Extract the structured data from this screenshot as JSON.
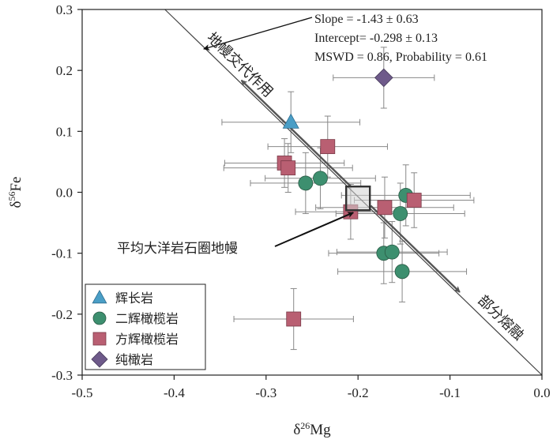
{
  "chart_data": {
    "type": "scatter",
    "xlabel_base": "δ",
    "xlabel_sup": "26",
    "xlabel_rest": "Mg",
    "ylabel_base": "δ",
    "ylabel_sup": "56",
    "ylabel_rest": "Fe",
    "xlim": [
      -0.5,
      0.0
    ],
    "ylim": [
      -0.3,
      0.3
    ],
    "xticks": [
      {
        "v": -0.5,
        "label": "-0.5"
      },
      {
        "v": -0.4,
        "label": "-0.4"
      },
      {
        "v": -0.3,
        "label": "-0.3"
      },
      {
        "v": -0.2,
        "label": "-0.2"
      },
      {
        "v": -0.1,
        "label": "-0.1"
      },
      {
        "v": 0.0,
        "label": "0.0"
      }
    ],
    "yticks": [
      {
        "v": 0.3,
        "label": "0.3"
      },
      {
        "v": 0.2,
        "label": "0.2"
      },
      {
        "v": 0.1,
        "label": "0.1"
      },
      {
        "v": 0.0,
        "label": "0.0"
      },
      {
        "v": -0.1,
        "label": "-0.1"
      },
      {
        "v": -0.2,
        "label": "-0.2"
      },
      {
        "v": -0.3,
        "label": "-0.3"
      }
    ],
    "grid": false,
    "legend_position": "bottom-left",
    "regression": {
      "line1": "Slope = -1.43 ± 0.63",
      "line2": "Intercept= -0.298 ± 0.13",
      "line3": "MSWD = 0.86, Probability = 0.61",
      "start": [
        -0.41,
        0.3
      ],
      "end": [
        0.0,
        -0.3
      ]
    },
    "annotations": {
      "metasomatism": "地幔交代作用",
      "melting": "部分熔融",
      "average": "平均大洋岩石圈地幔"
    },
    "reference_point": {
      "x": -0.2,
      "y": -0.01
    },
    "series": [
      {
        "name": "辉长岩",
        "marker": "triangle",
        "color": "#4a9ec6",
        "points": [
          {
            "x": -0.273,
            "y": 0.115,
            "xerr": 0.075,
            "yerr": 0.05
          }
        ]
      },
      {
        "name": "二辉橄榄岩",
        "marker": "circle",
        "color": "#3d8f6f",
        "points": [
          {
            "x": -0.257,
            "y": 0.015,
            "xerr": 0.06,
            "yerr": 0.05
          },
          {
            "x": -0.241,
            "y": 0.023,
            "xerr": 0.06,
            "yerr": 0.05
          },
          {
            "x": -0.148,
            "y": -0.005,
            "xerr": 0.07,
            "yerr": 0.05
          },
          {
            "x": -0.154,
            "y": -0.035,
            "xerr": 0.07,
            "yerr": 0.05
          },
          {
            "x": -0.172,
            "y": -0.1,
            "xerr": 0.06,
            "yerr": 0.05
          },
          {
            "x": -0.163,
            "y": -0.098,
            "xerr": 0.06,
            "yerr": 0.05
          },
          {
            "x": -0.152,
            "y": -0.13,
            "xerr": 0.07,
            "yerr": 0.05
          }
        ]
      },
      {
        "name": "方辉橄榄岩",
        "marker": "square",
        "color": "#b95f72",
        "points": [
          {
            "x": -0.28,
            "y": 0.048,
            "xerr": 0.065,
            "yerr": 0.04
          },
          {
            "x": -0.276,
            "y": 0.04,
            "xerr": 0.07,
            "yerr": 0.04
          },
          {
            "x": -0.233,
            "y": 0.075,
            "xerr": 0.065,
            "yerr": 0.05
          },
          {
            "x": -0.208,
            "y": -0.032,
            "xerr": 0.06,
            "yerr": 0.045
          },
          {
            "x": -0.171,
            "y": -0.025,
            "xerr": 0.075,
            "yerr": 0.05
          },
          {
            "x": -0.139,
            "y": -0.013,
            "xerr": 0.065,
            "yerr": 0.045
          },
          {
            "x": -0.27,
            "y": -0.208,
            "xerr": 0.065,
            "yerr": 0.05
          }
        ]
      },
      {
        "name": "纯橄岩",
        "marker": "diamond",
        "color": "#6e5a8a",
        "points": [
          {
            "x": -0.172,
            "y": 0.188,
            "xerr": 0.055,
            "yerr": 0.05
          }
        ]
      }
    ]
  }
}
